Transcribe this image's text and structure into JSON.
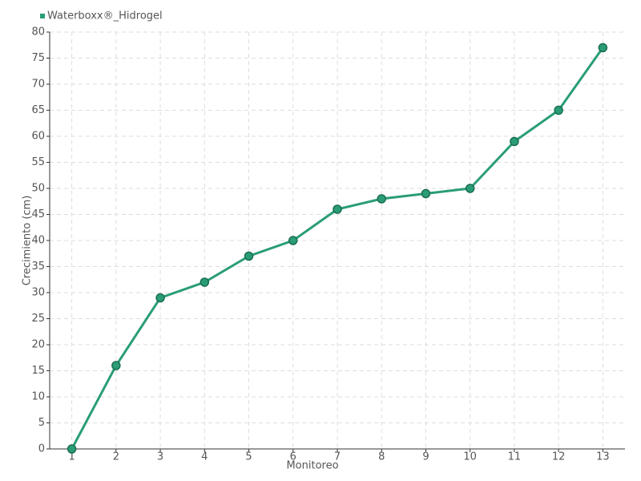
{
  "chart_data": {
    "type": "line",
    "x_label": "Monitoreo",
    "y_label": "Crecimiento (cm)",
    "categories": [
      "1",
      "2",
      "3",
      "4",
      "5",
      "6",
      "7",
      "8",
      "9",
      "10",
      "11",
      "12",
      "13"
    ],
    "series": [
      {
        "name": "Waterboxx®_Hidrogel",
        "color": "#2a9d77",
        "values": [
          0,
          16,
          29,
          32,
          37,
          40,
          46,
          48,
          49,
          50,
          59,
          65,
          77
        ]
      }
    ],
    "ylim": [
      0,
      80
    ],
    "yticks": [
      0,
      5,
      10,
      15,
      20,
      25,
      30,
      35,
      40,
      45,
      50,
      55,
      60,
      65,
      70,
      75,
      80
    ],
    "grid": true,
    "legend": "top-left"
  }
}
